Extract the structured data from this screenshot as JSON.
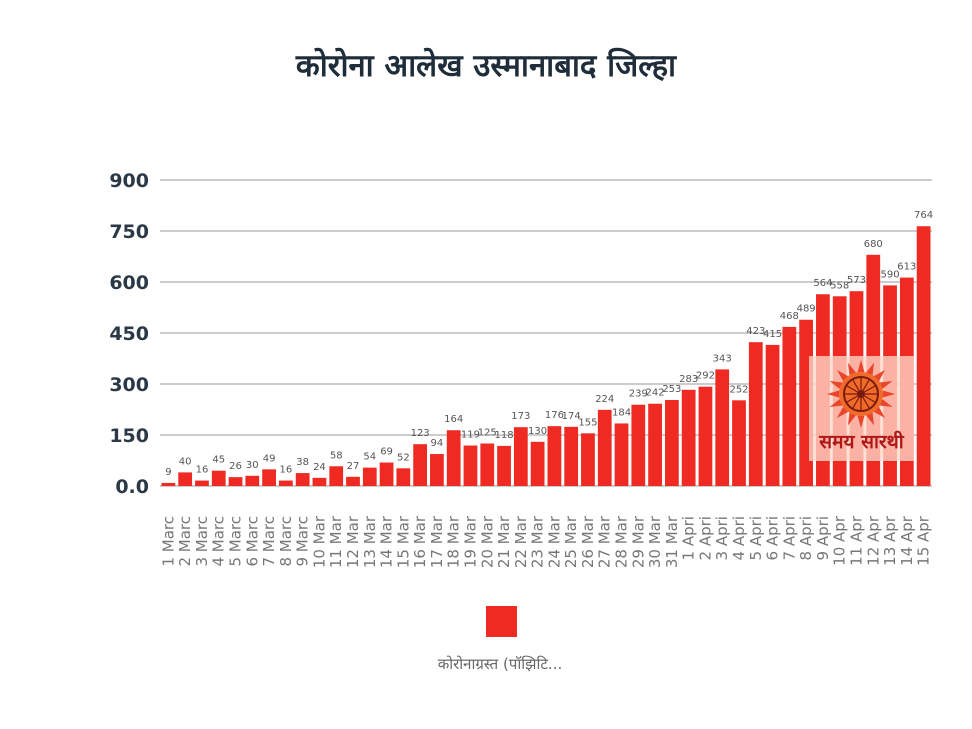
{
  "title": "कोरोना आलेख उस्मानाबाद जिल्हा",
  "colors": {
    "bar": "#ee2a22",
    "grid": "#9a9a9a",
    "title": "#1f2d3a"
  },
  "legend": {
    "label": "कोरोनाग्रस्त (पॉझिटि..."
  },
  "watermark": {
    "text": "समय सारथी"
  },
  "chart_data": {
    "type": "bar",
    "title": "कोरोना आलेख उस्मानाबाद जिल्हा",
    "xlabel": "",
    "ylabel": "",
    "ylim": [
      0,
      900
    ],
    "yticks": [
      "0.0",
      "150",
      "300",
      "450",
      "600",
      "750",
      "900"
    ],
    "grid": true,
    "legend_position": "bottom",
    "categories": [
      "1 Marc",
      "2 Marc",
      "3 Marc",
      "4 Marc",
      "5 Marc",
      "6 Marc",
      "7 Marc",
      "8 Marc",
      "9 Marc",
      "10 Mar",
      "11 Mar",
      "12 Mar",
      "13 Mar",
      "14 Mar",
      "15 Mar",
      "16 Mar",
      "17 Mar",
      "18 Mar",
      "19 Mar",
      "20 Mar",
      "21 Mar",
      "22 Mar",
      "23 Mar",
      "24 Mar",
      "25 Mar",
      "26 Mar",
      "27 Mar",
      "28 Mar",
      "29 Mar",
      "30 Mar",
      "31 Mar",
      "1 Apri",
      "2 Apri",
      "3 Apri",
      "4 Apri",
      "5 Apri",
      "6 Apri",
      "7 Apri",
      "8 Apri",
      "9 Apri",
      "10 Apr",
      "11 Apr",
      "12 Apr",
      "13 Apr",
      "14 Apr",
      "15 Apr"
    ],
    "series": [
      {
        "name": "कोरोनाग्रस्त (पॉझिटि...",
        "values": [
          9,
          40,
          16,
          45,
          26,
          30,
          49,
          16,
          38,
          24,
          58,
          27,
          54,
          69,
          52,
          123,
          94,
          164,
          119,
          125,
          118,
          173,
          130,
          176,
          174,
          155,
          224,
          184,
          239,
          242,
          253,
          283,
          292,
          343,
          252,
          423,
          415,
          468,
          489,
          564,
          558,
          573,
          680,
          590,
          613,
          764
        ]
      }
    ]
  }
}
